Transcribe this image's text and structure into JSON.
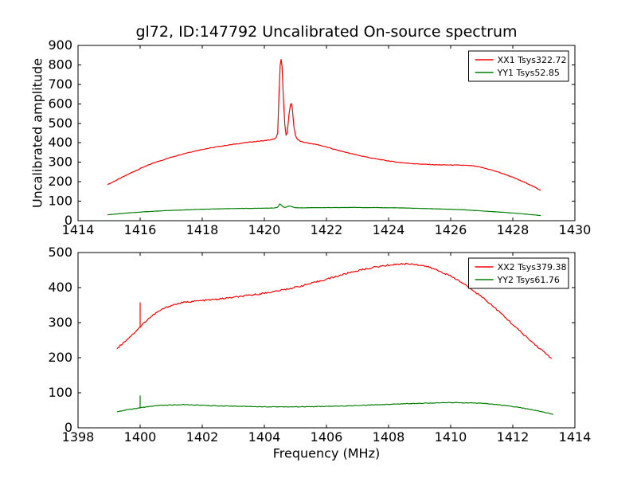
{
  "figure": {
    "title": "gl72, ID:147792 Uncalibrated On-source spectrum",
    "background": "#ffffff",
    "frame_color": "#000000"
  },
  "chart_data": [
    {
      "type": "line",
      "title": "",
      "xlabel": "",
      "ylabel": "Uncalibrated amplitude",
      "xlim": [
        1414,
        1430
      ],
      "ylim": [
        0,
        900
      ],
      "xticks": [
        1414,
        1416,
        1418,
        1420,
        1422,
        1424,
        1426,
        1428,
        1430
      ],
      "yticks": [
        0,
        100,
        200,
        300,
        400,
        500,
        600,
        700,
        800,
        900
      ],
      "grid": false,
      "legend_position": "upper right",
      "series": [
        {
          "name": "XX1 Tsys322.72",
          "color": "#ff0000",
          "noise": 1.5,
          "points": [
            [
              1414.95,
              185
            ],
            [
              1415.3,
              213
            ],
            [
              1415.7,
              245
            ],
            [
              1416.1,
              275
            ],
            [
              1416.5,
              300
            ],
            [
              1417.0,
              326
            ],
            [
              1417.5,
              348
            ],
            [
              1418.0,
              366
            ],
            [
              1418.5,
              380
            ],
            [
              1419.0,
              392
            ],
            [
              1419.5,
              403
            ],
            [
              1420.0,
              411
            ],
            [
              1420.2,
              415
            ],
            [
              1420.32,
              420
            ],
            [
              1420.38,
              426
            ],
            [
              1420.43,
              450
            ],
            [
              1420.47,
              640
            ],
            [
              1420.51,
              800
            ],
            [
              1420.54,
              828
            ],
            [
              1420.57,
              790
            ],
            [
              1420.61,
              640
            ],
            [
              1420.66,
              490
            ],
            [
              1420.7,
              440
            ],
            [
              1420.74,
              452
            ],
            [
              1420.79,
              540
            ],
            [
              1420.84,
              595
            ],
            [
              1420.87,
              603
            ],
            [
              1420.9,
              575
            ],
            [
              1420.95,
              485
            ],
            [
              1421.0,
              440
            ],
            [
              1421.05,
              420
            ],
            [
              1421.15,
              408
            ],
            [
              1421.3,
              402
            ],
            [
              1421.5,
              396
            ],
            [
              1421.75,
              389
            ],
            [
              1422.0,
              378
            ],
            [
              1422.3,
              364
            ],
            [
              1422.7,
              348
            ],
            [
              1423.1,
              333
            ],
            [
              1423.5,
              320
            ],
            [
              1423.9,
              309
            ],
            [
              1424.3,
              300
            ],
            [
              1424.7,
              294
            ],
            [
              1425.1,
              290
            ],
            [
              1425.5,
              287
            ],
            [
              1425.9,
              286
            ],
            [
              1426.3,
              285
            ],
            [
              1426.7,
              282
            ],
            [
              1427.0,
              273
            ],
            [
              1427.3,
              261
            ],
            [
              1427.6,
              246
            ],
            [
              1427.9,
              229
            ],
            [
              1428.2,
              209
            ],
            [
              1428.5,
              189
            ],
            [
              1428.75,
              168
            ],
            [
              1428.9,
              156
            ]
          ],
          "spikes": []
        },
        {
          "name": "YY1 Tsys52.85",
          "color": "#007f00",
          "noise": 0.6,
          "points": [
            [
              1414.95,
              30
            ],
            [
              1415.4,
              37
            ],
            [
              1415.9,
              43
            ],
            [
              1416.4,
              48
            ],
            [
              1416.9,
              52
            ],
            [
              1417.4,
              55
            ],
            [
              1417.9,
              58
            ],
            [
              1418.4,
              60
            ],
            [
              1418.9,
              62
            ],
            [
              1419.4,
              63
            ],
            [
              1419.9,
              64
            ],
            [
              1420.3,
              65
            ],
            [
              1420.42,
              69
            ],
            [
              1420.5,
              86
            ],
            [
              1420.57,
              76
            ],
            [
              1420.64,
              68
            ],
            [
              1420.72,
              70
            ],
            [
              1420.8,
              76
            ],
            [
              1420.88,
              72
            ],
            [
              1420.97,
              67
            ],
            [
              1421.2,
              66
            ],
            [
              1421.6,
              67
            ],
            [
              1422.2,
              67
            ],
            [
              1422.9,
              68
            ],
            [
              1423.6,
              67
            ],
            [
              1424.3,
              66
            ],
            [
              1425.0,
              63
            ],
            [
              1425.7,
              60
            ],
            [
              1426.4,
              56
            ],
            [
              1427.0,
              50
            ],
            [
              1427.6,
              44
            ],
            [
              1428.2,
              37
            ],
            [
              1428.6,
              31
            ],
            [
              1428.9,
              26
            ]
          ],
          "spikes": []
        }
      ]
    },
    {
      "type": "line",
      "title": "",
      "xlabel": "Frequency (MHz)",
      "ylabel": "",
      "xlim": [
        1398,
        1414
      ],
      "ylim": [
        0,
        500
      ],
      "xticks": [
        1398,
        1400,
        1402,
        1404,
        1406,
        1408,
        1410,
        1412,
        1414
      ],
      "yticks": [
        0,
        100,
        200,
        300,
        400,
        500
      ],
      "grid": false,
      "legend_position": "upper right",
      "series": [
        {
          "name": "XX2 Tsys379.38",
          "color": "#ff0000",
          "noise": 2.2,
          "points": [
            [
              1399.25,
              226
            ],
            [
              1399.5,
              246
            ],
            [
              1399.75,
              266
            ],
            [
              1400.0,
              288
            ],
            [
              1400.25,
              310
            ],
            [
              1400.5,
              327
            ],
            [
              1400.75,
              340
            ],
            [
              1401.0,
              349
            ],
            [
              1401.3,
              356
            ],
            [
              1401.6,
              360
            ],
            [
              1402.0,
              363
            ],
            [
              1402.4,
              366
            ],
            [
              1402.8,
              370
            ],
            [
              1403.2,
              374
            ],
            [
              1403.6,
              379
            ],
            [
              1404.0,
              384
            ],
            [
              1404.4,
              390
            ],
            [
              1404.8,
              397
            ],
            [
              1405.2,
              405
            ],
            [
              1405.6,
              414
            ],
            [
              1406.0,
              424
            ],
            [
              1406.4,
              434
            ],
            [
              1406.8,
              444
            ],
            [
              1407.2,
              452
            ],
            [
              1407.6,
              459
            ],
            [
              1408.0,
              464
            ],
            [
              1408.3,
              467
            ],
            [
              1408.6,
              468
            ],
            [
              1408.9,
              466
            ],
            [
              1409.2,
              461
            ],
            [
              1409.5,
              452
            ],
            [
              1409.8,
              441
            ],
            [
              1410.1,
              428
            ],
            [
              1410.4,
              412
            ],
            [
              1410.7,
              394
            ],
            [
              1411.0,
              374
            ],
            [
              1411.3,
              352
            ],
            [
              1411.6,
              328
            ],
            [
              1411.9,
              303
            ],
            [
              1412.2,
              278
            ],
            [
              1412.5,
              254
            ],
            [
              1412.8,
              231
            ],
            [
              1413.05,
              213
            ],
            [
              1413.25,
              198
            ]
          ],
          "spikes": [
            {
              "x": 1400.0,
              "from": 288,
              "to": 358
            }
          ]
        },
        {
          "name": "YY2 Tsys61.76",
          "color": "#007f00",
          "noise": 0.8,
          "points": [
            [
              1399.25,
              45
            ],
            [
              1399.55,
              51
            ],
            [
              1399.85,
              55
            ],
            [
              1400.0,
              57
            ],
            [
              1400.3,
              61
            ],
            [
              1400.6,
              64
            ],
            [
              1401.0,
              65
            ],
            [
              1401.4,
              66
            ],
            [
              1401.8,
              65
            ],
            [
              1402.3,
              63
            ],
            [
              1402.9,
              62
            ],
            [
              1403.5,
              61
            ],
            [
              1404.1,
              60
            ],
            [
              1404.7,
              60
            ],
            [
              1405.3,
              60
            ],
            [
              1405.9,
              61
            ],
            [
              1406.5,
              62
            ],
            [
              1407.1,
              64
            ],
            [
              1407.7,
              66
            ],
            [
              1408.3,
              68
            ],
            [
              1408.9,
              70
            ],
            [
              1409.5,
              71
            ],
            [
              1410.1,
              72
            ],
            [
              1410.6,
              71
            ],
            [
              1411.0,
              70
            ],
            [
              1411.4,
              67
            ],
            [
              1411.8,
              63
            ],
            [
              1412.2,
              58
            ],
            [
              1412.6,
              52
            ],
            [
              1413.0,
              45
            ],
            [
              1413.3,
              38
            ]
          ],
          "spikes": [
            {
              "x": 1400.0,
              "from": 57,
              "to": 92
            }
          ]
        }
      ]
    }
  ]
}
